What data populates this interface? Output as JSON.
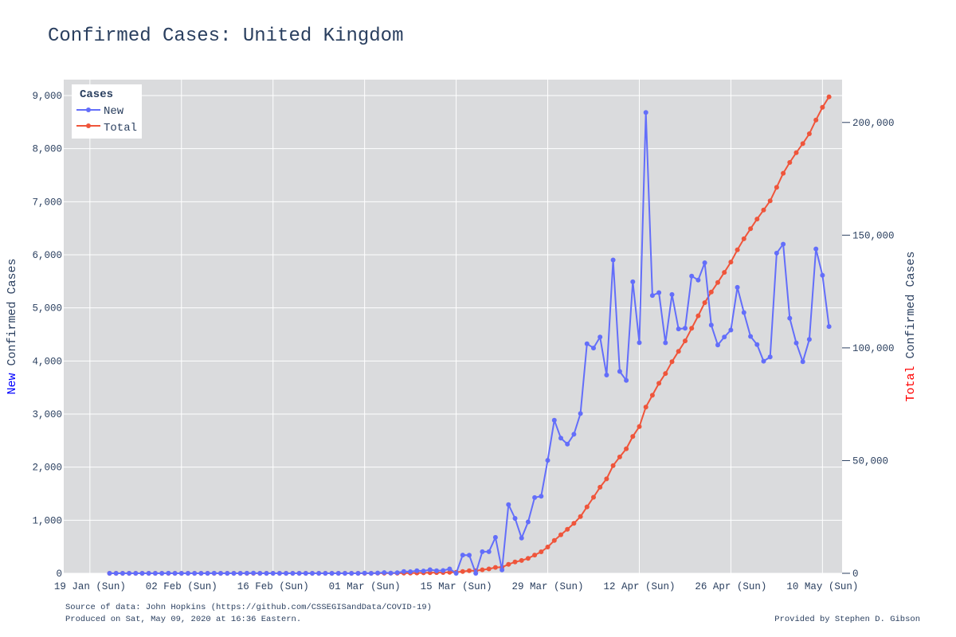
{
  "chart_data": {
    "type": "line",
    "title": "Confirmed Cases: United Kingdom",
    "x_tick_labels": [
      "19 Jan (Sun)",
      "02 Feb (Sun)",
      "16 Feb (Sun)",
      "01 Mar (Sun)",
      "15 Mar (Sun)",
      "29 Mar (Sun)",
      "12 Apr (Sun)",
      "26 Apr (Sun)",
      "10 May (Sun)"
    ],
    "x_start_date": "2020-01-22",
    "x_range": [
      "2020-01-15",
      "2020-05-13"
    ],
    "y_left": {
      "label_highlight": "New",
      "label_rest": " Confirmed Cases",
      "label_highlight_color": "#0000ff",
      "range": [
        0,
        9300
      ],
      "ticks": [
        0,
        1000,
        2000,
        3000,
        4000,
        5000,
        6000,
        7000,
        8000,
        9000
      ],
      "tick_labels": [
        "0",
        "1,000",
        "2,000",
        "3,000",
        "4,000",
        "5,000",
        "6,000",
        "7,000",
        "8,000",
        "9,000"
      ]
    },
    "y_right": {
      "label_highlight": "Total",
      "label_rest": " Confirmed Cases",
      "label_highlight_color": "#ff0000",
      "range": [
        0,
        219000
      ],
      "ticks": [
        0,
        50000,
        100000,
        150000,
        200000
      ],
      "tick_labels": [
        "0",
        "50,000",
        "100,000",
        "150,000",
        "200,000"
      ]
    },
    "grid": true,
    "legend": {
      "title": "Cases",
      "placement": "top-left"
    },
    "series": [
      {
        "name": "New",
        "color": "#636efa",
        "axis": "left",
        "values": [
          0,
          0,
          0,
          0,
          0,
          0,
          0,
          0,
          0,
          2,
          0,
          0,
          0,
          0,
          0,
          0,
          1,
          0,
          0,
          0,
          0,
          1,
          5,
          0,
          0,
          0,
          0,
          0,
          0,
          0,
          0,
          0,
          0,
          0,
          0,
          0,
          0,
          0,
          0,
          4,
          0,
          6,
          13,
          3,
          11,
          34,
          30,
          48,
          43,
          67,
          48,
          52,
          83,
          0,
          343,
          342,
          0,
          407,
          406,
          676,
          63,
          1294,
          1035,
          665,
          967,
          1427,
          1452,
          2129,
          2885,
          2546,
          2433,
          2619,
          3009,
          4324,
          4244,
          4450,
          3735,
          5903,
          3802,
          3634,
          5491,
          4344,
          8681,
          5233,
          5288,
          4342,
          5252,
          4603,
          4617,
          5599,
          5525,
          5850,
          4676,
          4301,
          4451,
          4583,
          5386,
          4913,
          4463,
          4309,
          3996,
          4076,
          6032,
          6201,
          4806,
          4339,
          3985,
          4406,
          6111,
          5614,
          4649
        ]
      },
      {
        "name": "Total",
        "color": "#ef553b",
        "axis": "right",
        "values": [
          0,
          0,
          0,
          0,
          0,
          0,
          0,
          0,
          0,
          2,
          2,
          2,
          2,
          2,
          2,
          2,
          3,
          3,
          3,
          3,
          3,
          4,
          9,
          9,
          9,
          9,
          9,
          9,
          9,
          9,
          9,
          9,
          9,
          9,
          9,
          9,
          9,
          9,
          9,
          13,
          13,
          19,
          32,
          35,
          46,
          80,
          110,
          158,
          201,
          268,
          316,
          368,
          451,
          451,
          794,
          1136,
          1136,
          1543,
          1949,
          2625,
          2688,
          3982,
          5017,
          5682,
          6649,
          8076,
          9528,
          11657,
          14542,
          17088,
          19521,
          22140,
          25149,
          29473,
          33717,
          38167,
          41902,
          47805,
          51607,
          55241,
          60732,
          65076,
          73757,
          78990,
          84278,
          88620,
          93872,
          98475,
          103092,
          108691,
          114216,
          120066,
          124742,
          129043,
          133494,
          138077,
          143463,
          148376,
          152839,
          157148,
          161144,
          165220,
          171252,
          177453,
          182259,
          186598,
          190583,
          194989,
          201100,
          206714,
          211363
        ]
      }
    ]
  },
  "footer": {
    "source": "Source of data: John Hopkins (https://github.com/CSSEGISandData/COVID-19)",
    "produced": "Produced on Sat, May 09, 2020 at 16:36 Eastern.",
    "credit": "Provided by Stephen D. Gibson"
  }
}
